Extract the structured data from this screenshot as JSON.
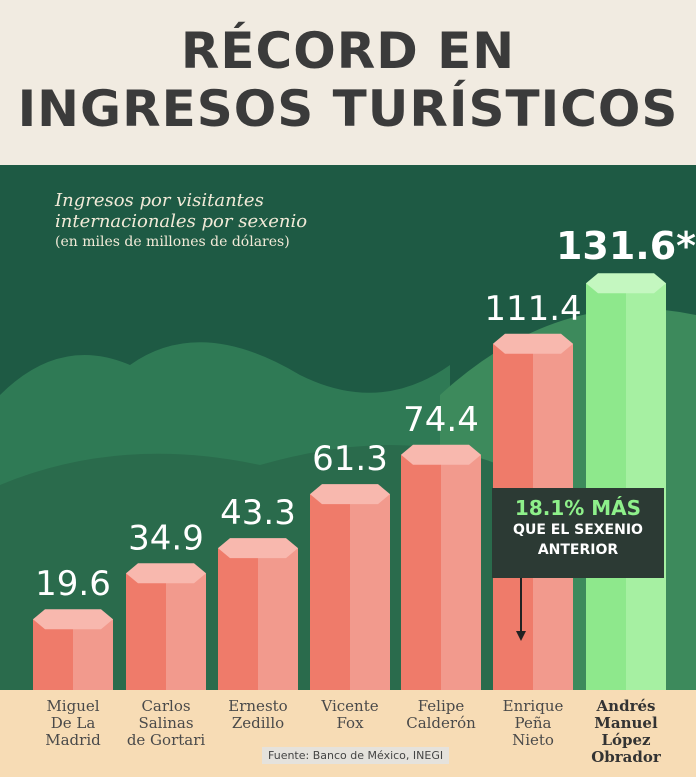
{
  "title_lines": [
    "RÉCORD EN",
    "INGRESOS TURÍSTICOS"
  ],
  "subtitle": [
    "Ingresos por visitantes",
    "internacionales por sexenio"
  ],
  "unit_note": "(en miles de millones de dólares)",
  "annotation": {
    "highlight": "18.1% MÁS",
    "text_lines": [
      "QUE EL SEXENIO",
      "ANTERIOR"
    ]
  },
  "source": "Fuente: Banco de México, INEGI",
  "colors": {
    "bar": "#ef7b6a",
    "highlight_bar": "#8ee88c",
    "background": "#1e5a44",
    "footer": "#f7dcb5"
  },
  "chart_data": {
    "type": "bar",
    "categories": [
      [
        "Miguel",
        "De La",
        "Madrid"
      ],
      [
        "Carlos",
        "Salinas",
        "de Gortari"
      ],
      [
        "Ernesto",
        "Zedillo"
      ],
      [
        "Vicente",
        "Fox"
      ],
      [
        "Felipe",
        "Calderón"
      ],
      [
        "Enrique",
        "Peña",
        "Nieto"
      ],
      [
        "Andrés",
        "Manuel",
        "López",
        "Obrador"
      ]
    ],
    "values": [
      19.6,
      34.9,
      43.3,
      61.3,
      74.4,
      111.4,
      131.6
    ],
    "value_labels": [
      "19.6",
      "34.9",
      "43.3",
      "61.3",
      "74.4",
      "111.4",
      "131.6*"
    ],
    "highlight_index": 6
  }
}
